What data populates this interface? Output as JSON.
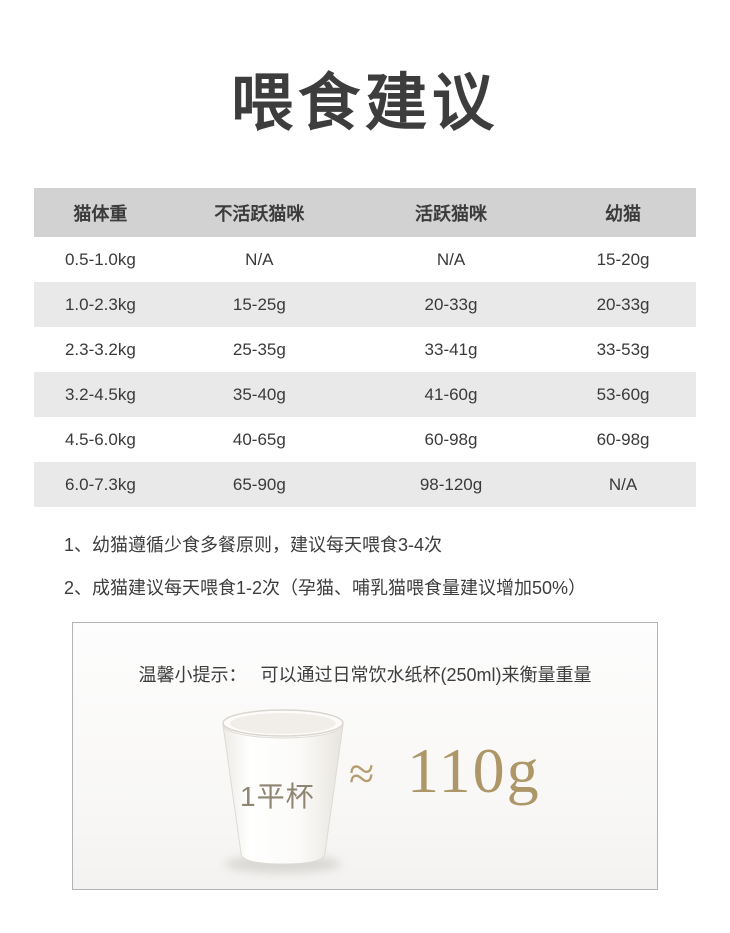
{
  "page": {
    "title": "喂食建议"
  },
  "table": {
    "headers": [
      "猫体重",
      "不活跃猫咪",
      "活跃猫咪",
      "幼猫"
    ],
    "rows": [
      [
        "0.5-1.0kg",
        "N/A",
        "N/A",
        "15-20g"
      ],
      [
        "1.0-2.3kg",
        "15-25g",
        "20-33g",
        "20-33g"
      ],
      [
        "2.3-3.2kg",
        "25-35g",
        "33-41g",
        "33-53g"
      ],
      [
        "3.2-4.5kg",
        "35-40g",
        "41-60g",
        "53-60g"
      ],
      [
        "4.5-6.0kg",
        "40-65g",
        "60-98g",
        "60-98g"
      ],
      [
        "6.0-7.3kg",
        "65-90g",
        "98-120g",
        "N/A"
      ]
    ]
  },
  "notes": [
    "1、幼猫遵循少食多餐原则，建议每天喂食3-4次",
    "2、成猫建议每天喂食1-2次（孕猫、哺乳猫喂食量建议增加50%）"
  ],
  "tip": {
    "label": "温馨小提示：",
    "text": "可以通过日常饮水纸杯(250ml)来衡量重量",
    "cup_label": "1平杯",
    "approx_symbol": "≈",
    "amount": "110g"
  },
  "colors": {
    "header_bg": "#d2d2d2",
    "alt_row_bg": "#e9e9e9",
    "text_color": "#3d3d3d",
    "gold": "#ad9668",
    "cup_label_color": "#8e8572",
    "box_border": "#b3b3b3"
  }
}
